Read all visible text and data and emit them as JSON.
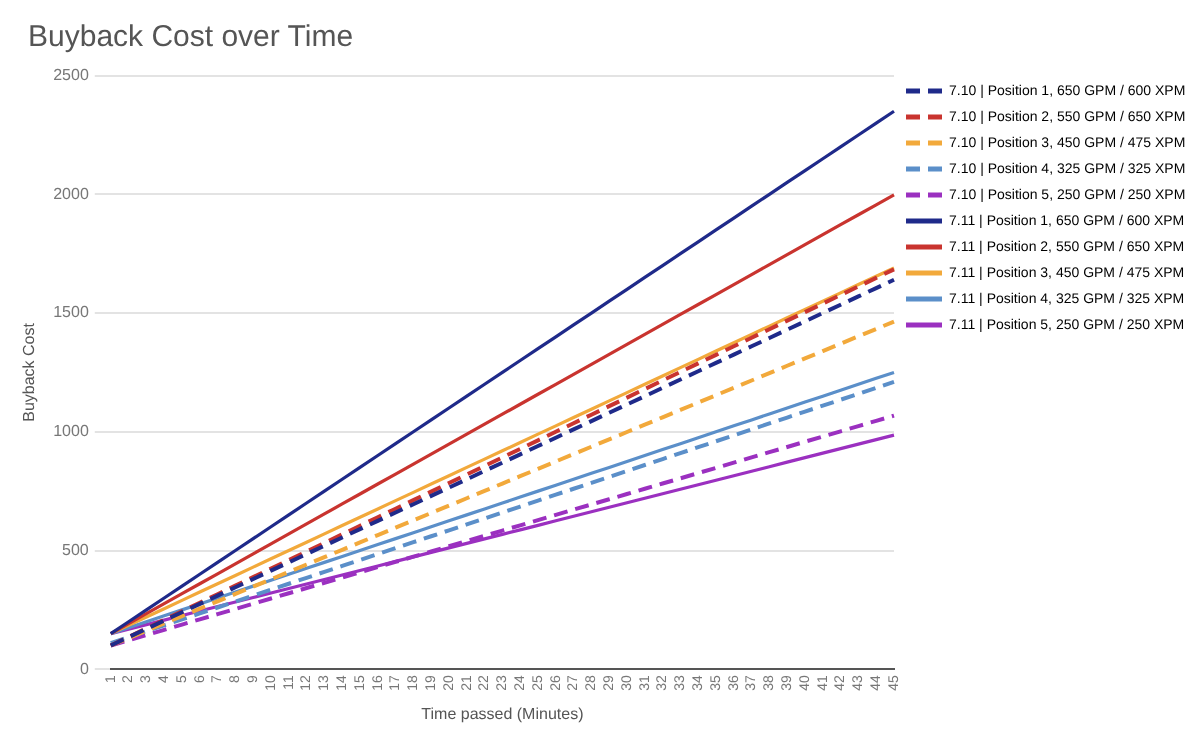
{
  "chart_data": {
    "type": "line",
    "title": "Buyback Cost over Time",
    "xlabel": "Time passed (Minutes)",
    "ylabel": "Buyback Cost",
    "categories": [
      "1",
      "2",
      "3",
      "4",
      "5",
      "6",
      "7",
      "8",
      "9",
      "10",
      "11",
      "12",
      "13",
      "14",
      "15",
      "16",
      "17",
      "18",
      "19",
      "20",
      "21",
      "22",
      "23",
      "24",
      "25",
      "26",
      "27",
      "28",
      "29",
      "30",
      "31",
      "32",
      "33",
      "34",
      "35",
      "36",
      "37",
      "38",
      "39",
      "40",
      "41",
      "42",
      "43",
      "44",
      "45"
    ],
    "ylim": [
      0,
      2500
    ],
    "yticks": [
      0,
      500,
      1000,
      1500,
      2000,
      2500
    ],
    "grid": "y",
    "legend": "right",
    "marker": "none",
    "series": [
      {
        "name": "7.10 | Position 1, 650 GPM / 600 XPM",
        "color": "#1f2a8a",
        "line_style": "dashed",
        "values": [
          100,
          135,
          170,
          205,
          240,
          275,
          310,
          345,
          380,
          415,
          450,
          485,
          520,
          555,
          590,
          625,
          660,
          695,
          730,
          765,
          800,
          835,
          870,
          905,
          940,
          975,
          1010,
          1045,
          1080,
          1115,
          1150,
          1185,
          1220,
          1255,
          1290,
          1325,
          1360,
          1395,
          1430,
          1465,
          1500,
          1535,
          1570,
          1605,
          1640
        ]
      },
      {
        "name": "7.10 | Position 2, 550 GPM / 650 XPM",
        "color": "#c9342f",
        "line_style": "dashed",
        "values": [
          100,
          136,
          172,
          208,
          244,
          280,
          316,
          352,
          388,
          424,
          460,
          496,
          532,
          568,
          604,
          640,
          676,
          712,
          748,
          784,
          820,
          856,
          892,
          928,
          964,
          1000,
          1036,
          1072,
          1108,
          1144,
          1180,
          1216,
          1252,
          1288,
          1324,
          1360,
          1396,
          1432,
          1468,
          1504,
          1540,
          1576,
          1612,
          1648,
          1684
        ]
      },
      {
        "name": "7.10 | Position 3, 450 GPM / 475 XPM",
        "color": "#f2a93b",
        "line_style": "dashed",
        "values": [
          100,
          131,
          162,
          193,
          224,
          255,
          286,
          317,
          348,
          379,
          410,
          441,
          472,
          503,
          534,
          565,
          596,
          627,
          658,
          689,
          720,
          751,
          782,
          813,
          844,
          875,
          906,
          937,
          968,
          999,
          1030,
          1061,
          1092,
          1123,
          1154,
          1185,
          1216,
          1247,
          1278,
          1309,
          1340,
          1371,
          1402,
          1433,
          1464
        ]
      },
      {
        "name": "7.10 | Position 4, 325 GPM / 325 XPM",
        "color": "#5b8fc9",
        "line_style": "dashed",
        "values": [
          110,
          135,
          160,
          185,
          210,
          235,
          260,
          285,
          310,
          335,
          360,
          385,
          410,
          435,
          460,
          485,
          510,
          535,
          560,
          585,
          610,
          635,
          660,
          685,
          710,
          735,
          760,
          785,
          810,
          835,
          860,
          885,
          910,
          935,
          960,
          985,
          1010,
          1035,
          1060,
          1085,
          1110,
          1135,
          1160,
          1185,
          1210
        ]
      },
      {
        "name": "7.10 | Position 5, 250 GPM / 250 XPM",
        "color": "#9b30c0",
        "line_style": "dashed",
        "values": [
          100,
          122,
          144,
          166,
          188,
          210,
          232,
          254,
          276,
          298,
          320,
          342,
          364,
          386,
          408,
          430,
          452,
          474,
          496,
          518,
          540,
          562,
          584,
          606,
          628,
          650,
          672,
          694,
          716,
          738,
          760,
          782,
          804,
          826,
          848,
          870,
          892,
          914,
          936,
          958,
          980,
          1002,
          1024,
          1046,
          1068
        ]
      },
      {
        "name": "7.11 | Position 1, 650 GPM / 600 XPM",
        "color": "#1f2a8a",
        "line_style": "solid",
        "values": [
          150,
          200,
          250,
          300,
          350,
          400,
          450,
          500,
          550,
          600,
          650,
          700,
          750,
          800,
          850,
          900,
          950,
          1000,
          1050,
          1100,
          1150,
          1200,
          1250,
          1300,
          1350,
          1400,
          1450,
          1500,
          1550,
          1600,
          1650,
          1700,
          1750,
          1800,
          1850,
          1900,
          1950,
          2000,
          2050,
          2100,
          2150,
          2200,
          2250,
          2300,
          2350
        ]
      },
      {
        "name": "7.11 | Position 2, 550 GPM / 650 XPM",
        "color": "#c9342f",
        "line_style": "solid",
        "values": [
          150,
          192,
          234,
          276,
          318,
          360,
          402,
          444,
          486,
          528,
          570,
          612,
          654,
          696,
          738,
          780,
          822,
          864,
          906,
          948,
          990,
          1032,
          1074,
          1116,
          1158,
          1200,
          1242,
          1284,
          1326,
          1368,
          1410,
          1452,
          1494,
          1536,
          1578,
          1620,
          1662,
          1704,
          1746,
          1788,
          1830,
          1872,
          1914,
          1956,
          1998
        ]
      },
      {
        "name": "7.11 | Position 3, 450 GPM / 475 XPM",
        "color": "#f2a93b",
        "line_style": "solid",
        "values": [
          150,
          185,
          220,
          255,
          290,
          325,
          360,
          395,
          430,
          465,
          500,
          535,
          570,
          605,
          640,
          675,
          710,
          745,
          780,
          815,
          850,
          885,
          920,
          955,
          990,
          1025,
          1060,
          1095,
          1130,
          1165,
          1200,
          1235,
          1270,
          1305,
          1340,
          1375,
          1410,
          1445,
          1480,
          1515,
          1550,
          1585,
          1620,
          1655,
          1690
        ]
      },
      {
        "name": "7.11 | Position 4, 325 GPM / 325 XPM",
        "color": "#5b8fc9",
        "line_style": "solid",
        "values": [
          150,
          175,
          200,
          225,
          250,
          275,
          300,
          325,
          350,
          375,
          400,
          425,
          450,
          475,
          500,
          525,
          550,
          575,
          600,
          625,
          650,
          675,
          700,
          725,
          750,
          775,
          800,
          825,
          850,
          875,
          900,
          925,
          950,
          975,
          1000,
          1025,
          1050,
          1075,
          1100,
          1125,
          1150,
          1175,
          1200,
          1225,
          1250
        ]
      },
      {
        "name": "7.11 | Position 5, 250 GPM / 250 XPM",
        "color": "#9b30c0",
        "line_style": "solid",
        "values": [
          150,
          169,
          188,
          207,
          226,
          245,
          264,
          283,
          302,
          321,
          340,
          359,
          378,
          397,
          416,
          435,
          454,
          473,
          492,
          511,
          530,
          549,
          568,
          587,
          606,
          625,
          644,
          663,
          682,
          701,
          720,
          739,
          758,
          777,
          796,
          815,
          834,
          853,
          872,
          891,
          910,
          929,
          948,
          967,
          986
        ]
      }
    ]
  }
}
